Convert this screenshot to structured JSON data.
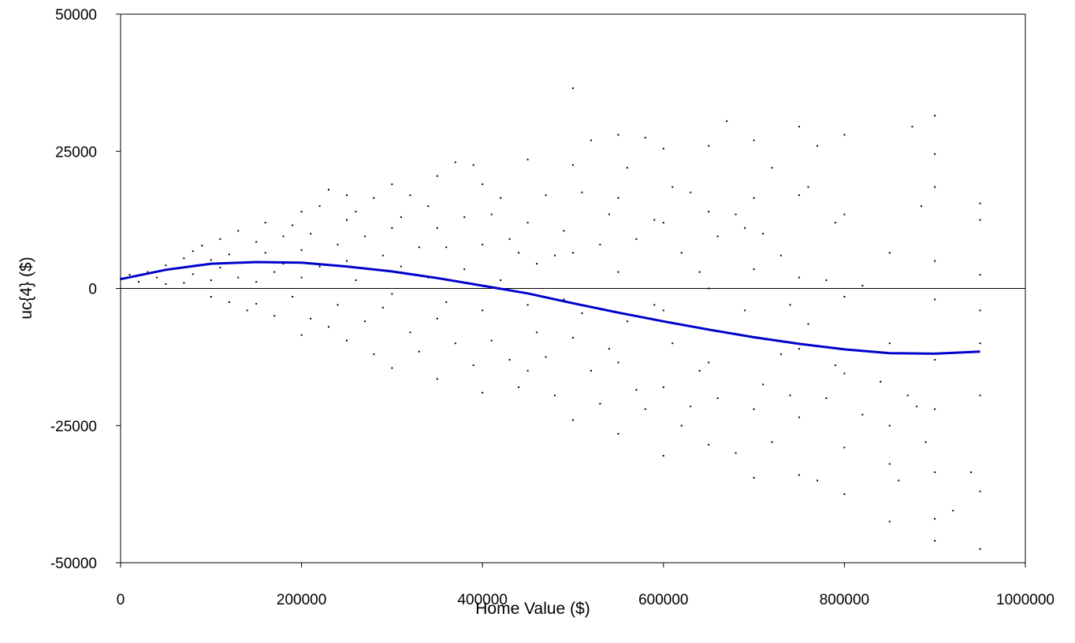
{
  "chart_data": {
    "type": "scatter",
    "title": "",
    "xlabel": "Home Value ($)",
    "ylabel": "uc{4} ($)",
    "xlim": [
      0,
      1000000
    ],
    "ylim": [
      -50000,
      50000
    ],
    "x_ticks": [
      0,
      200000,
      400000,
      600000,
      800000,
      1000000
    ],
    "x_tick_labels": [
      "0",
      "200000",
      "400000",
      "600000",
      "800000",
      "1000000"
    ],
    "y_ticks": [
      -50000,
      -25000,
      0,
      25000,
      50000
    ],
    "y_tick_labels": [
      "-50000",
      "-25000",
      "0",
      "25000",
      "50000"
    ],
    "zero_line": true,
    "grid": false,
    "legend": "none",
    "colors": {
      "points": "#000000",
      "curve": "#0000cc",
      "axis": "#000000"
    },
    "series": [
      {
        "type": "line",
        "x": [
          0,
          50000,
          100000,
          150000,
          200000,
          250000,
          300000,
          350000,
          400000,
          450000,
          500000,
          550000,
          600000,
          650000,
          700000,
          750000,
          800000,
          850000,
          900000,
          950000
        ],
        "y": [
          1700,
          3400,
          4500,
          4800,
          4700,
          4000,
          3100,
          1900,
          500,
          -900,
          -2700,
          -4400,
          -6000,
          -7500,
          -8900,
          -10100,
          -11100,
          -11800,
          -11900,
          -11500
        ]
      },
      {
        "type": "scatter",
        "points": [
          [
            0,
            1800
          ],
          [
            10000,
            2500
          ],
          [
            20000,
            1200
          ],
          [
            30000,
            3000
          ],
          [
            40000,
            2000
          ],
          [
            50000,
            4200
          ],
          [
            50000,
            800
          ],
          [
            60000,
            3600
          ],
          [
            70000,
            5500
          ],
          [
            70000,
            1000
          ],
          [
            80000,
            2600
          ],
          [
            80000,
            6800
          ],
          [
            90000,
            4300
          ],
          [
            90000,
            7800
          ],
          [
            100000,
            5200
          ],
          [
            100000,
            1500
          ],
          [
            100000,
            -1500
          ],
          [
            110000,
            9000
          ],
          [
            110000,
            3800
          ],
          [
            120000,
            6200
          ],
          [
            120000,
            -2500
          ],
          [
            130000,
            2000
          ],
          [
            130000,
            10500
          ],
          [
            140000,
            4800
          ],
          [
            140000,
            -4000
          ],
          [
            150000,
            8500
          ],
          [
            150000,
            1200
          ],
          [
            150000,
            -2800
          ],
          [
            160000,
            12000
          ],
          [
            160000,
            6500
          ],
          [
            170000,
            3000
          ],
          [
            170000,
            -5000
          ],
          [
            180000,
            9500
          ],
          [
            180000,
            4500
          ],
          [
            190000,
            -1500
          ],
          [
            190000,
            11500
          ],
          [
            200000,
            14000
          ],
          [
            200000,
            7000
          ],
          [
            200000,
            -8500
          ],
          [
            200000,
            2000
          ],
          [
            210000,
            -5500
          ],
          [
            210000,
            10000
          ],
          [
            220000,
            15000
          ],
          [
            220000,
            4000
          ],
          [
            230000,
            18000
          ],
          [
            230000,
            -7000
          ],
          [
            240000,
            8000
          ],
          [
            240000,
            -3000
          ],
          [
            250000,
            12500
          ],
          [
            250000,
            17000
          ],
          [
            250000,
            5000
          ],
          [
            250000,
            -9500
          ],
          [
            260000,
            14000
          ],
          [
            260000,
            1500
          ],
          [
            270000,
            -6000
          ],
          [
            270000,
            9500
          ],
          [
            280000,
            16500
          ],
          [
            280000,
            -12000
          ],
          [
            290000,
            6000
          ],
          [
            290000,
            -3500
          ],
          [
            300000,
            19000
          ],
          [
            300000,
            11000
          ],
          [
            300000,
            -1000
          ],
          [
            300000,
            -14500
          ],
          [
            310000,
            13000
          ],
          [
            310000,
            4000
          ],
          [
            320000,
            -8000
          ],
          [
            320000,
            17000
          ],
          [
            330000,
            7500
          ],
          [
            330000,
            -11500
          ],
          [
            340000,
            15000
          ],
          [
            340000,
            2000
          ],
          [
            350000,
            20500
          ],
          [
            350000,
            11000
          ],
          [
            350000,
            -5500
          ],
          [
            350000,
            -16500
          ],
          [
            360000,
            7500
          ],
          [
            360000,
            -2500
          ],
          [
            370000,
            23000
          ],
          [
            370000,
            -10000
          ],
          [
            380000,
            13000
          ],
          [
            380000,
            3500
          ],
          [
            390000,
            -14000
          ],
          [
            390000,
            22500
          ],
          [
            400000,
            19000
          ],
          [
            400000,
            8000
          ],
          [
            400000,
            -4000
          ],
          [
            400000,
            -19000
          ],
          [
            410000,
            13500
          ],
          [
            410000,
            -9500
          ],
          [
            420000,
            16500
          ],
          [
            420000,
            1500
          ],
          [
            430000,
            -13000
          ],
          [
            430000,
            9000
          ],
          [
            440000,
            6500
          ],
          [
            440000,
            -18000
          ],
          [
            450000,
            23500
          ],
          [
            450000,
            12000
          ],
          [
            450000,
            -3000
          ],
          [
            450000,
            -15000
          ],
          [
            460000,
            -8000
          ],
          [
            460000,
            4500
          ],
          [
            470000,
            17000
          ],
          [
            470000,
            -12500
          ],
          [
            480000,
            6000
          ],
          [
            480000,
            -19500
          ],
          [
            490000,
            10500
          ],
          [
            490000,
            -2000
          ],
          [
            500000,
            36500
          ],
          [
            500000,
            22500
          ],
          [
            500000,
            6500
          ],
          [
            500000,
            -9000
          ],
          [
            500000,
            -24000
          ],
          [
            510000,
            17500
          ],
          [
            510000,
            -4500
          ],
          [
            520000,
            27000
          ],
          [
            520000,
            -15000
          ],
          [
            530000,
            8000
          ],
          [
            530000,
            -21000
          ],
          [
            540000,
            13500
          ],
          [
            540000,
            -11000
          ],
          [
            550000,
            28000
          ],
          [
            550000,
            16500
          ],
          [
            550000,
            3000
          ],
          [
            550000,
            -13500
          ],
          [
            550000,
            -26500
          ],
          [
            560000,
            22000
          ],
          [
            560000,
            -6000
          ],
          [
            570000,
            9000
          ],
          [
            570000,
            -18500
          ],
          [
            580000,
            27500
          ],
          [
            580000,
            -22000
          ],
          [
            590000,
            12500
          ],
          [
            590000,
            -3000
          ],
          [
            600000,
            25500
          ],
          [
            600000,
            12000
          ],
          [
            600000,
            -4000
          ],
          [
            600000,
            -18000
          ],
          [
            600000,
            -30500
          ],
          [
            610000,
            18500
          ],
          [
            610000,
            -10000
          ],
          [
            620000,
            6500
          ],
          [
            620000,
            -25000
          ],
          [
            630000,
            17500
          ],
          [
            630000,
            -21500
          ],
          [
            640000,
            3000
          ],
          [
            640000,
            -15000
          ],
          [
            650000,
            26000
          ],
          [
            650000,
            14000
          ],
          [
            650000,
            0
          ],
          [
            650000,
            -13500
          ],
          [
            650000,
            -28500
          ],
          [
            660000,
            9500
          ],
          [
            660000,
            -20000
          ],
          [
            670000,
            30500
          ],
          [
            670000,
            -8000
          ],
          [
            680000,
            13500
          ],
          [
            680000,
            -30000
          ],
          [
            690000,
            -4000
          ],
          [
            690000,
            11000
          ],
          [
            700000,
            27000
          ],
          [
            700000,
            16500
          ],
          [
            700000,
            3500
          ],
          [
            700000,
            -9000
          ],
          [
            700000,
            -22000
          ],
          [
            700000,
            -34500
          ],
          [
            710000,
            10000
          ],
          [
            710000,
            -17500
          ],
          [
            720000,
            22000
          ],
          [
            720000,
            -28000
          ],
          [
            730000,
            6000
          ],
          [
            730000,
            -12000
          ],
          [
            740000,
            -3000
          ],
          [
            740000,
            -19500
          ],
          [
            750000,
            29500
          ],
          [
            750000,
            17000
          ],
          [
            750000,
            2000
          ],
          [
            750000,
            -11000
          ],
          [
            750000,
            -23500
          ],
          [
            750000,
            -34000
          ],
          [
            760000,
            18500
          ],
          [
            760000,
            -6500
          ],
          [
            770000,
            26000
          ],
          [
            770000,
            -35000
          ],
          [
            780000,
            1500
          ],
          [
            780000,
            -20000
          ],
          [
            790000,
            12000
          ],
          [
            790000,
            -14000
          ],
          [
            800000,
            28000
          ],
          [
            800000,
            13500
          ],
          [
            800000,
            -1500
          ],
          [
            800000,
            -15500
          ],
          [
            800000,
            -29000
          ],
          [
            800000,
            -37500
          ],
          [
            820000,
            500
          ],
          [
            820000,
            -23000
          ],
          [
            840000,
            -17000
          ],
          [
            850000,
            6500
          ],
          [
            850000,
            -10000
          ],
          [
            850000,
            -25000
          ],
          [
            850000,
            -32000
          ],
          [
            850000,
            -42500
          ],
          [
            860000,
            -35000
          ],
          [
            870000,
            -19500
          ],
          [
            875000,
            29500
          ],
          [
            880000,
            -21500
          ],
          [
            885000,
            15000
          ],
          [
            890000,
            -28000
          ],
          [
            900000,
            31500
          ],
          [
            900000,
            24500
          ],
          [
            900000,
            18500
          ],
          [
            900000,
            5000
          ],
          [
            900000,
            -2000
          ],
          [
            900000,
            -13000
          ],
          [
            900000,
            -22000
          ],
          [
            900000,
            -33500
          ],
          [
            900000,
            -42000
          ],
          [
            900000,
            -46000
          ],
          [
            920000,
            -40500
          ],
          [
            940000,
            -33500
          ],
          [
            950000,
            15500
          ],
          [
            950000,
            12500
          ],
          [
            950000,
            2500
          ],
          [
            950000,
            -4000
          ],
          [
            950000,
            -10000
          ],
          [
            950000,
            -19500
          ],
          [
            950000,
            -37000
          ],
          [
            950000,
            -47500
          ]
        ]
      }
    ]
  }
}
